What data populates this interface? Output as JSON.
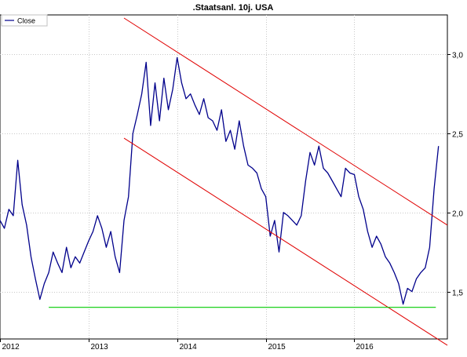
{
  "chart_data": {
    "type": "line",
    "title": ".Staatsanl. 10j. USA",
    "xlabel": "",
    "ylabel": "",
    "x_ticks": [
      "2012",
      "2013",
      "2014",
      "2015",
      "2016"
    ],
    "y_ticks": [
      "1,5",
      "2,0",
      "2,5",
      "3,0"
    ],
    "y_tick_values": [
      1.5,
      2.0,
      2.5,
      3.0
    ],
    "xlim": [
      2012.0,
      2017.05
    ],
    "ylim": [
      1.2,
      3.25
    ],
    "grid": true,
    "legend": {
      "position": "top-left",
      "entries": [
        "Close"
      ]
    },
    "colors": {
      "close": "#00008b",
      "channel": "#e00000",
      "support": "#00cc00",
      "grid": "#c8c8c8"
    },
    "series": [
      {
        "name": "Close",
        "x": [
          2012.0,
          2012.05,
          2012.1,
          2012.15,
          2012.2,
          2012.25,
          2012.3,
          2012.35,
          2012.4,
          2012.45,
          2012.5,
          2012.55,
          2012.6,
          2012.65,
          2012.7,
          2012.75,
          2012.8,
          2012.85,
          2012.9,
          2012.95,
          2013.0,
          2013.05,
          2013.1,
          2013.15,
          2013.2,
          2013.25,
          2013.3,
          2013.35,
          2013.4,
          2013.45,
          2013.5,
          2013.55,
          2013.6,
          2013.65,
          2013.7,
          2013.75,
          2013.8,
          2013.85,
          2013.9,
          2013.95,
          2014.0,
          2014.05,
          2014.1,
          2014.15,
          2014.2,
          2014.25,
          2014.3,
          2014.35,
          2014.4,
          2014.45,
          2014.5,
          2014.55,
          2014.6,
          2014.65,
          2014.7,
          2014.75,
          2014.8,
          2014.85,
          2014.9,
          2014.95,
          2015.0,
          2015.05,
          2015.1,
          2015.15,
          2015.2,
          2015.25,
          2015.3,
          2015.35,
          2015.4,
          2015.45,
          2015.5,
          2015.55,
          2015.6,
          2015.65,
          2015.7,
          2015.75,
          2015.8,
          2015.85,
          2015.9,
          2015.95,
          2016.0,
          2016.05,
          2016.1,
          2016.15,
          2016.2,
          2016.25,
          2016.3,
          2016.35,
          2016.4,
          2016.45,
          2016.5,
          2016.55,
          2016.6,
          2016.65,
          2016.7,
          2016.75,
          2016.8,
          2016.85,
          2016.9,
          2016.95
        ],
        "values": [
          1.95,
          1.9,
          2.02,
          1.98,
          2.33,
          2.05,
          1.92,
          1.72,
          1.58,
          1.45,
          1.55,
          1.62,
          1.75,
          1.68,
          1.62,
          1.78,
          1.65,
          1.72,
          1.68,
          1.75,
          1.82,
          1.88,
          1.98,
          1.9,
          1.78,
          1.88,
          1.72,
          1.62,
          1.95,
          2.1,
          2.5,
          2.62,
          2.75,
          2.95,
          2.55,
          2.82,
          2.58,
          2.85,
          2.65,
          2.78,
          2.98,
          2.82,
          2.72,
          2.75,
          2.68,
          2.62,
          2.72,
          2.6,
          2.58,
          2.52,
          2.65,
          2.45,
          2.52,
          2.4,
          2.58,
          2.42,
          2.3,
          2.28,
          2.25,
          2.15,
          2.1,
          1.85,
          1.95,
          1.75,
          2.0,
          1.98,
          1.95,
          1.92,
          1.98,
          2.2,
          2.38,
          2.3,
          2.42,
          2.28,
          2.25,
          2.2,
          2.15,
          2.1,
          2.28,
          2.25,
          2.24,
          2.1,
          2.02,
          1.88,
          1.78,
          1.85,
          1.8,
          1.72,
          1.68,
          1.62,
          1.55,
          1.42,
          1.52,
          1.5,
          1.58,
          1.62,
          1.65,
          1.78,
          2.15,
          2.42
        ]
      },
      {
        "name": "",
        "x": [
          2013.4,
          2017.05
        ],
        "values": [
          3.23,
          1.92
        ]
      },
      {
        "name": "",
        "x": [
          2013.4,
          2017.05
        ],
        "values": [
          2.47,
          1.16
        ]
      },
      {
        "name": "",
        "x": [
          2012.55,
          2016.92
        ],
        "values": [
          1.4,
          1.4
        ]
      }
    ]
  }
}
